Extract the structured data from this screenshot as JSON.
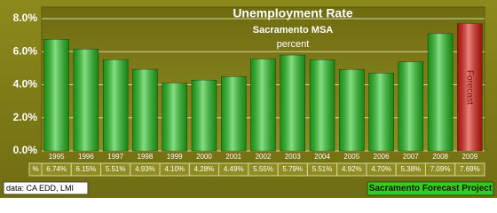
{
  "chart_data": {
    "type": "bar",
    "title": "Unemployment Rate",
    "subtitle": "Sacramento MSA",
    "unit_label": "percent",
    "categories": [
      "1995",
      "1996",
      "1997",
      "1998",
      "1999",
      "2000",
      "2001",
      "2002",
      "2003",
      "2004",
      "2005",
      "2006",
      "2007",
      "2008",
      "2009"
    ],
    "values": [
      6.74,
      6.15,
      5.51,
      4.93,
      4.1,
      4.28,
      4.49,
      5.55,
      5.79,
      5.51,
      4.92,
      4.7,
      5.38,
      7.09,
      7.69
    ],
    "value_labels": [
      "6.74%",
      "6.15%",
      "5.51%",
      "4.93%",
      "4.10%",
      "4.28%",
      "4.49%",
      "5.55%",
      "5.79%",
      "5.51%",
      "4.92%",
      "4.70%",
      "5.38%",
      "7.09%",
      "7.69%"
    ],
    "colors": [
      "#22c41e",
      "#22c41e",
      "#22c41e",
      "#22c41e",
      "#22c41e",
      "#22c41e",
      "#22c41e",
      "#22c41e",
      "#22c41e",
      "#22c41e",
      "#22c41e",
      "#22c41e",
      "#22c41e",
      "#22c41e",
      "#e01a10"
    ],
    "table_header": "%",
    "annotations": [
      {
        "text": "Forecast",
        "category": "2009"
      }
    ],
    "ylim": [
      0,
      8
    ],
    "yticks": [
      {
        "value": 0,
        "label": "0.0%"
      },
      {
        "value": 2,
        "label": "2.0%"
      },
      {
        "value": 4,
        "label": "4.0%"
      },
      {
        "value": 6,
        "label": "6.0%"
      },
      {
        "value": 8,
        "label": "8.0%"
      }
    ],
    "grid": true,
    "source": "data: CA EDD, LMI",
    "credit": "Sacramento Forecast Project"
  }
}
